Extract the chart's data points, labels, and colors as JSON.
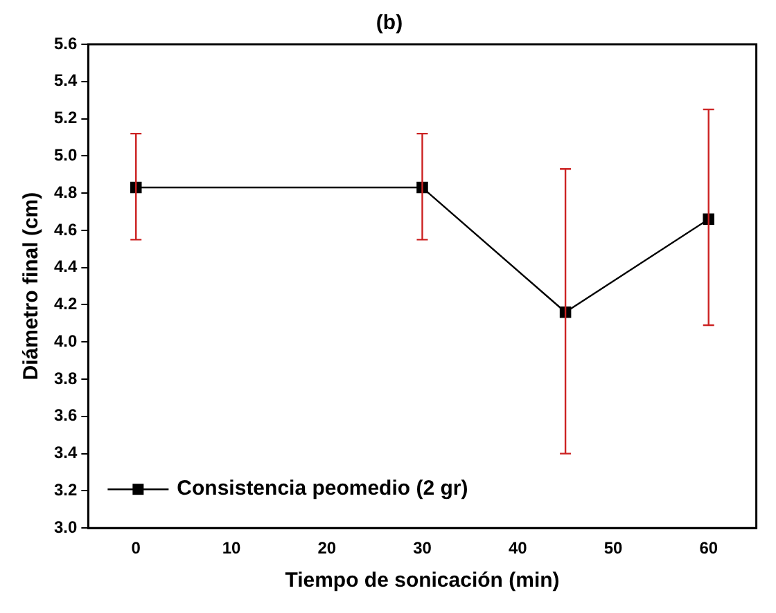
{
  "chart_data": {
    "type": "line",
    "title": "(b)",
    "xlabel": "Tiempo de sonicación (min)",
    "ylabel": "Diámetro final (cm)",
    "x": [
      0,
      30,
      45,
      60
    ],
    "series": [
      {
        "name": "Consistencia peomedio (2 gr)",
        "color": "#000000",
        "values": [
          4.83,
          4.83,
          4.16,
          4.66
        ],
        "errors": [
          [
            4.55,
            5.12
          ],
          [
            4.55,
            5.12
          ],
          [
            3.4,
            4.93
          ],
          [
            4.09,
            5.25
          ]
        ]
      }
    ],
    "xlim": [
      -5,
      65
    ],
    "xticks": [
      0,
      10,
      20,
      30,
      40,
      50,
      60
    ],
    "ylim": [
      3.0,
      5.6
    ],
    "yticks": [
      {
        "value": 3,
        "label": "3.0"
      },
      3.2,
      3.4,
      3.6,
      3.8,
      {
        "value": 4,
        "label": "4.0"
      },
      4.2,
      4.4,
      4.6,
      4.8,
      {
        "value": 5,
        "label": "5.0"
      },
      5.2,
      5.4,
      5.6
    ],
    "grid": false,
    "legend": "bottom left",
    "marker": "square",
    "line_style": "solid"
  }
}
